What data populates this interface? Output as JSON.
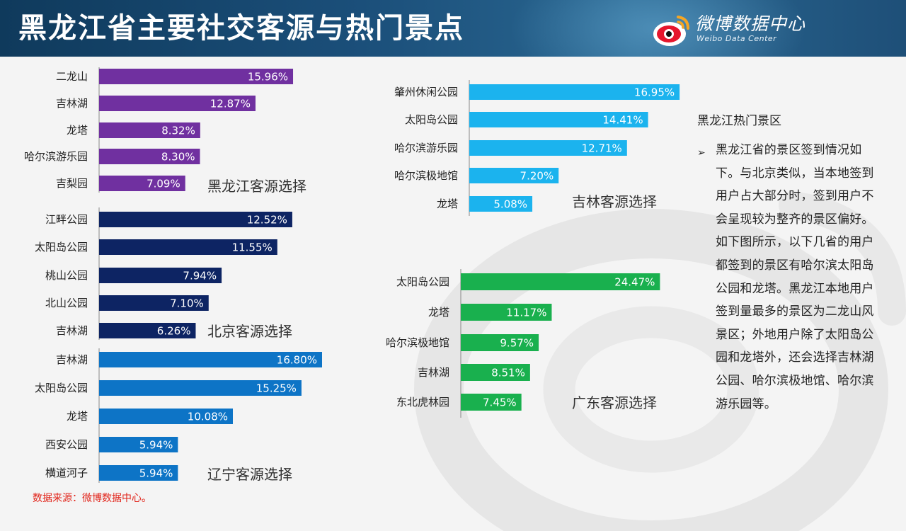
{
  "header": {
    "title": "黑龙江省主要社交客源与热门景点",
    "brand_cn": "微博数据中心",
    "brand_en": "Weibo Data Center"
  },
  "colors": {
    "header_bg": "#1b4f7a",
    "heilongjiang": "#7030a0",
    "beijing": "#0d2463",
    "liaoning": "#0d74c6",
    "jilin": "#1bb3ee",
    "guangdong": "#19b04e",
    "source_note": "#e1251b"
  },
  "chart_data": [
    {
      "type": "bar",
      "orientation": "horizontal",
      "title": "黑龙江客源选择",
      "categories": [
        "二龙山",
        "吉林湖",
        "龙塔",
        "哈尔滨游乐园",
        "吉梨园"
      ],
      "values": [
        15.96,
        12.87,
        8.32,
        8.3,
        7.09
      ],
      "value_labels": [
        "15.96%",
        "12.87%",
        "8.32%",
        "8.30%",
        "7.09%"
      ],
      "color": "#7030a0"
    },
    {
      "type": "bar",
      "orientation": "horizontal",
      "title": "北京客源选择",
      "categories": [
        "江畔公园",
        "太阳岛公园",
        "桃山公园",
        "北山公园",
        "吉林湖"
      ],
      "values": [
        12.52,
        11.55,
        7.94,
        7.1,
        6.26
      ],
      "value_labels": [
        "12.52%",
        "11.55%",
        "7.94%",
        "7.10%",
        "6.26%"
      ],
      "color": "#0d2463"
    },
    {
      "type": "bar",
      "orientation": "horizontal",
      "title": "辽宁客源选择",
      "categories": [
        "吉林湖",
        "太阳岛公园",
        "龙塔",
        "西安公园",
        "横道河子"
      ],
      "values": [
        16.8,
        15.25,
        10.08,
        5.94,
        5.94
      ],
      "value_labels": [
        "16.80%",
        "15.25%",
        "10.08%",
        "5.94%",
        "5.94%"
      ],
      "color": "#0d74c6"
    },
    {
      "type": "bar",
      "orientation": "horizontal",
      "title": "吉林客源选择",
      "categories": [
        "肇州休闲公园",
        "太阳岛公园",
        "哈尔滨游乐园",
        "哈尔滨极地馆",
        "龙塔"
      ],
      "values": [
        16.95,
        14.41,
        12.71,
        7.2,
        5.08
      ],
      "value_labels": [
        "16.95%",
        "14.41%",
        "12.71%",
        "7.20%",
        "5.08%"
      ],
      "color": "#1bb3ee"
    },
    {
      "type": "bar",
      "orientation": "horizontal",
      "title": "广东客源选择",
      "categories": [
        "太阳岛公园",
        "龙塔",
        "哈尔滨极地馆",
        "吉林湖",
        "东北虎林园"
      ],
      "values": [
        24.47,
        11.17,
        9.57,
        8.51,
        7.45
      ],
      "value_labels": [
        "24.47%",
        "11.17%",
        "9.57%",
        "8.51%",
        "7.45%"
      ],
      "color": "#19b04e"
    }
  ],
  "panel": {
    "title": "黑龙江热门景区",
    "bullet": "➢",
    "text": "黑龙江省的景区签到情况如下。与北京类似，当本地签到用户占大部分时，签到用户不会呈现较为整齐的景区偏好。如下图所示，以下几省的用户都签到的景区有哈尔滨太阳岛公园和龙塔。黑龙江本地用户签到量最多的景区为二龙山风景区；外地用户除了太阳岛公园和龙塔外，还会选择吉林湖公园、哈尔滨极地馆、哈尔滨游乐园等。"
  },
  "footer": {
    "source_note": "数据来源：微博数据中心。"
  }
}
